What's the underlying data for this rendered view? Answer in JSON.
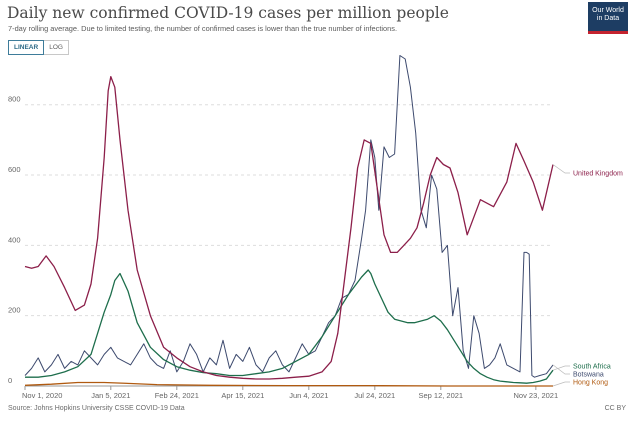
{
  "header": {
    "title": "Daily new confirmed COVID-19 cases per million people",
    "subtitle": "7-day rolling average. Due to limited testing, the number of confirmed cases is lower than the true number of infections.",
    "logo_line1": "Our World",
    "logo_line2": "in Data"
  },
  "controls": {
    "linear_label": "LINEAR",
    "log_label": "LOG"
  },
  "footer": {
    "source": "Source: Johns Hopkins University CSSE COVID-19 Data",
    "license": "CC BY"
  },
  "colors": {
    "uk": "#8c1f4a",
    "south_africa": "#1e6e4c",
    "botswana": "#3d4a6e",
    "hong_kong": "#b05a10",
    "grid": "#dddddd"
  },
  "chart_data": {
    "type": "line",
    "title": "Daily new confirmed COVID-19 cases per million people",
    "xlabel": "",
    "ylabel": "",
    "ylim": [
      0,
      950
    ],
    "xlim": [
      0,
      400
    ],
    "yticks": [
      0,
      200,
      400,
      600,
      800
    ],
    "x_tick_labels": [
      {
        "day": 0,
        "label": "Nov 1, 2020"
      },
      {
        "day": 65,
        "label": "Jan 5, 2021"
      },
      {
        "day": 115,
        "label": "Feb 24, 2021"
      },
      {
        "day": 165,
        "label": "Apr 15, 2021"
      },
      {
        "day": 215,
        "label": "Jun 4, 2021"
      },
      {
        "day": 265,
        "label": "Jul 24, 2021"
      },
      {
        "day": 315,
        "label": "Sep 12, 2021"
      },
      {
        "day": 387,
        "label": "Nov 23, 2021"
      }
    ],
    "grid": true,
    "series": [
      {
        "name": "United Kingdom",
        "key": "uk",
        "x": [
          0,
          5,
          10,
          16,
          22,
          30,
          38,
          45,
          50,
          55,
          60,
          63,
          65,
          68,
          72,
          78,
          85,
          95,
          105,
          115,
          125,
          135,
          145,
          155,
          165,
          175,
          185,
          195,
          205,
          215,
          225,
          232,
          237,
          242,
          247,
          252,
          257,
          262,
          267,
          272,
          277,
          282,
          287,
          292,
          297,
          302,
          307,
          312,
          317,
          322,
          328,
          335,
          345,
          355,
          365,
          372,
          378,
          385,
          392,
          400
        ],
        "values": [
          340,
          335,
          340,
          370,
          340,
          280,
          215,
          230,
          290,
          420,
          650,
          840,
          880,
          850,
          700,
          500,
          330,
          200,
          110,
          80,
          55,
          40,
          30,
          25,
          22,
          20,
          20,
          22,
          25,
          28,
          40,
          70,
          150,
          300,
          450,
          620,
          700,
          690,
          560,
          430,
          380,
          380,
          400,
          420,
          450,
          520,
          600,
          650,
          630,
          620,
          550,
          430,
          530,
          510,
          580,
          690,
          640,
          580,
          500,
          630
        ]
      },
      {
        "name": "South Africa",
        "key": "south_africa",
        "x": [
          0,
          10,
          20,
          30,
          40,
          50,
          55,
          60,
          65,
          68,
          72,
          78,
          85,
          95,
          105,
          115,
          125,
          135,
          145,
          155,
          165,
          175,
          185,
          195,
          205,
          215,
          225,
          235,
          245,
          255,
          260,
          262,
          265,
          270,
          275,
          280,
          285,
          290,
          295,
          300,
          305,
          310,
          315,
          320,
          325,
          330,
          335,
          340,
          345,
          350,
          355,
          360,
          365,
          370,
          375,
          380,
          385,
          390,
          395,
          400
        ],
        "values": [
          25,
          25,
          30,
          40,
          55,
          90,
          150,
          210,
          260,
          300,
          320,
          270,
          180,
          110,
          75,
          55,
          45,
          38,
          35,
          30,
          30,
          35,
          40,
          50,
          70,
          90,
          140,
          200,
          260,
          310,
          330,
          320,
          290,
          250,
          210,
          190,
          185,
          180,
          180,
          185,
          190,
          200,
          185,
          160,
          130,
          100,
          70,
          50,
          35,
          25,
          18,
          14,
          12,
          10,
          9,
          8,
          10,
          14,
          20,
          45
        ]
      },
      {
        "name": "Botswana",
        "key": "botswana",
        "x": [
          0,
          5,
          10,
          15,
          20,
          25,
          30,
          35,
          40,
          45,
          50,
          55,
          60,
          65,
          70,
          75,
          80,
          85,
          90,
          95,
          100,
          105,
          110,
          115,
          120,
          125,
          130,
          135,
          140,
          145,
          150,
          155,
          160,
          165,
          170,
          175,
          180,
          185,
          190,
          195,
          200,
          205,
          210,
          215,
          220,
          225,
          230,
          235,
          240,
          245,
          250,
          255,
          258,
          262,
          265,
          268,
          272,
          276,
          280,
          284,
          288,
          292,
          296,
          300,
          304,
          308,
          312,
          316,
          320,
          324,
          328,
          332,
          336,
          340,
          344,
          348,
          352,
          356,
          360,
          365,
          370,
          375,
          378,
          380,
          382,
          384,
          386,
          390,
          395,
          400
        ],
        "values": [
          30,
          50,
          80,
          40,
          60,
          90,
          50,
          70,
          60,
          100,
          80,
          60,
          90,
          110,
          80,
          70,
          60,
          90,
          120,
          80,
          60,
          50,
          100,
          40,
          70,
          120,
          90,
          40,
          80,
          60,
          130,
          50,
          90,
          70,
          110,
          60,
          40,
          80,
          100,
          60,
          40,
          80,
          120,
          90,
          100,
          140,
          180,
          200,
          250,
          260,
          300,
          420,
          500,
          700,
          650,
          500,
          680,
          650,
          660,
          940,
          930,
          850,
          720,
          500,
          450,
          600,
          560,
          380,
          400,
          200,
          280,
          100,
          50,
          200,
          150,
          50,
          60,
          80,
          120,
          60,
          50,
          40,
          380,
          380,
          375,
          30,
          25,
          30,
          35,
          60
        ]
      },
      {
        "name": "Hong Kong",
        "key": "hong_kong",
        "x": [
          0,
          20,
          40,
          60,
          80,
          100,
          140,
          200,
          260,
          320,
          380,
          400
        ],
        "values": [
          2,
          5,
          10,
          10,
          7,
          4,
          2,
          1,
          1,
          0,
          0,
          0
        ]
      }
    ]
  }
}
